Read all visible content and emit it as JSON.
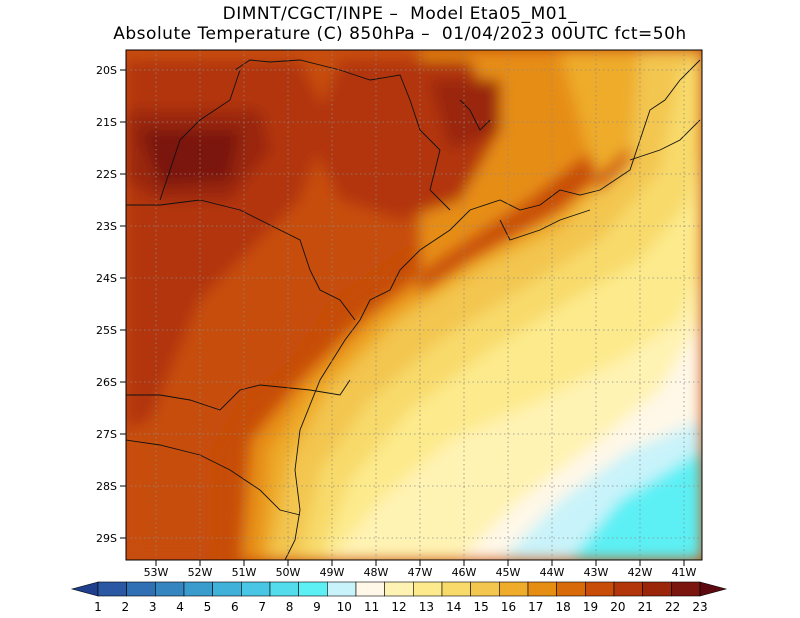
{
  "header": {
    "line1": "DIMNT/CGCT/INPE –  Model Eta05_M01_",
    "line2": "Absolute Temperature (C) 850hPa –  01/04/2023 00UTC fct=50h"
  },
  "map": {
    "lat_labels": [
      "20S",
      "21S",
      "22S",
      "23S",
      "24S",
      "25S",
      "26S",
      "27S",
      "28S",
      "29S"
    ],
    "lon_labels": [
      "53W",
      "52W",
      "51W",
      "50W",
      "49W",
      "48W",
      "47W",
      "46W",
      "45W",
      "44W",
      "43W",
      "42W",
      "41W"
    ]
  },
  "colorbar": {
    "labels": [
      "1",
      "2",
      "3",
      "4",
      "5",
      "6",
      "7",
      "8",
      "9",
      "10",
      "11",
      "12",
      "13",
      "14",
      "15",
      "16",
      "17",
      "18",
      "19",
      "20",
      "21",
      "22",
      "23"
    ],
    "colors": [
      "#1f3f8c",
      "#2a58a3",
      "#2f6fb3",
      "#3585c0",
      "#3a9bcd",
      "#40b1d9",
      "#49c6e3",
      "#52dcec",
      "#5cf0f5",
      "#c9f3fa",
      "#fff8e8",
      "#fff3b3",
      "#fdea8c",
      "#f8da6a",
      "#f3c64f",
      "#eeac2a",
      "#e68d14",
      "#d96a0a",
      "#c74d08",
      "#b23609",
      "#9a2509",
      "#7a160e",
      "#5c0a10"
    ]
  }
}
